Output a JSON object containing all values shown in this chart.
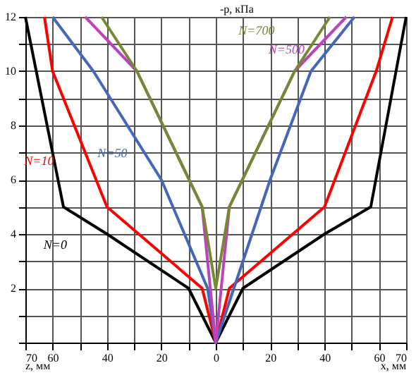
{
  "chart_data": {
    "type": "line",
    "ylabel": "-p, кПа",
    "xlabel": "x, мм",
    "annotations": [
      "z, мм"
    ],
    "xlim": [
      -70,
      70
    ],
    "ylim": [
      0,
      12
    ],
    "xticks": [
      {
        "value": -70,
        "label": "70"
      },
      {
        "value": -60,
        "label": "60"
      },
      {
        "value": -50,
        "label": null
      },
      {
        "value": -40,
        "label": "40"
      },
      {
        "value": -30,
        "label": null
      },
      {
        "value": -20,
        "label": "20"
      },
      {
        "value": -10,
        "label": null
      },
      0,
      {
        "value": 10,
        "label": null
      },
      20,
      {
        "value": 30,
        "label": null
      },
      40,
      {
        "value": 50,
        "label": null
      },
      60,
      70
    ],
    "yticks": [
      {
        "value": 0,
        "label": null
      },
      {
        "value": 1,
        "label": null
      },
      2,
      {
        "value": 3,
        "label": null
      },
      4,
      {
        "value": 5,
        "label": null
      },
      6,
      {
        "value": 7,
        "label": null
      },
      8,
      {
        "value": 9,
        "label": null
      },
      10,
      {
        "value": 11,
        "label": null
      },
      12
    ],
    "grid": true,
    "marker": "none",
    "line_style": "solid",
    "series": [
      {
        "name": "N=0",
        "color": "#000000",
        "x": [
          -70,
          -56,
          -40,
          -10,
          0,
          10,
          40,
          57,
          70
        ],
        "values": [
          12,
          5,
          4,
          2,
          0,
          2,
          4,
          5,
          12
        ]
      },
      {
        "name": "N=10",
        "color": "#ff0000",
        "x": [
          -63,
          -60,
          -40,
          -5,
          0,
          5,
          40,
          59,
          65
        ],
        "values": [
          12,
          10,
          5,
          2,
          0,
          2,
          5,
          10,
          12
        ]
      },
      {
        "name": "N=50",
        "color": "#4466bb",
        "x": [
          -60,
          -45,
          -20,
          -3,
          0,
          20,
          35,
          51
        ],
        "values": [
          12,
          10,
          6,
          2,
          0,
          6,
          10,
          12
        ]
      },
      {
        "name": "N=500",
        "color": "#bb44bb",
        "x": [
          -48,
          -29,
          -5,
          0,
          5,
          29,
          48
        ],
        "values": [
          12,
          10,
          5,
          0,
          5,
          10,
          12
        ]
      },
      {
        "name": "N=700",
        "color": "#778833",
        "x": [
          -42,
          -29,
          -5,
          0,
          5,
          29,
          42
        ],
        "values": [
          12,
          10,
          5,
          2,
          5,
          10,
          12
        ]
      }
    ]
  }
}
